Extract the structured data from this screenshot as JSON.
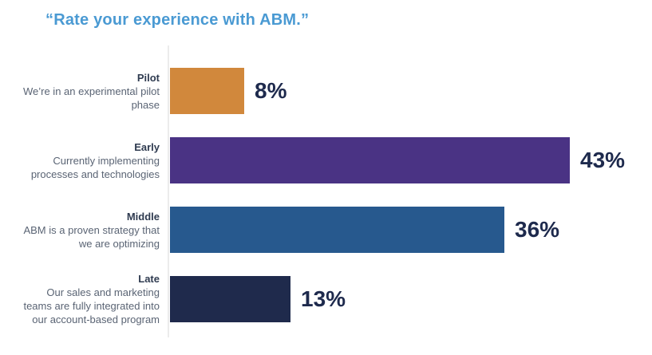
{
  "title": "“Rate your experience with ABM.”",
  "colors": {
    "title_text": "#4A9AD3",
    "category_text": "#2F3B50",
    "description_text": "#5A6474",
    "value_text": "#1E2A4D",
    "axis_line": "#ECECEC",
    "background": "#ffffff"
  },
  "chart_data": {
    "type": "bar",
    "orientation": "horizontal",
    "title": "“Rate your experience with ABM.”",
    "xlabel": "",
    "ylabel": "",
    "xlim": [
      0,
      50
    ],
    "grid": false,
    "legend": false,
    "value_unit": "%",
    "categories": [
      "Pilot",
      "Early",
      "Middle",
      "Late"
    ],
    "values": [
      8,
      43,
      36,
      13
    ],
    "rows": [
      {
        "category": "Pilot",
        "description": "We’re in an experimental pilot phase",
        "value": 8,
        "value_label": "8%",
        "color": "#D1883C"
      },
      {
        "category": "Early",
        "description": "Currently implementing processes and technologies",
        "value": 43,
        "value_label": "43%",
        "color": "#4A3384"
      },
      {
        "category": "Middle",
        "description": "ABM is a proven strategy that we are optimizing",
        "value": 36,
        "value_label": "36%",
        "color": "#27598E"
      },
      {
        "category": "Late",
        "description": "Our sales and marketing teams are fully integrated into our account-based program",
        "value": 13,
        "value_label": "13%",
        "color": "#1F2A4C"
      }
    ]
  }
}
